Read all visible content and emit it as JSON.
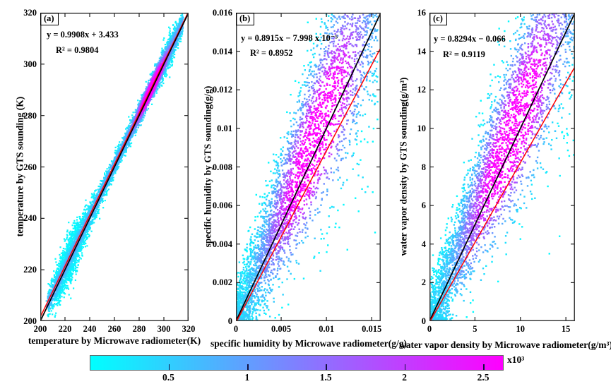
{
  "chart_data": [
    {
      "type": "scatter",
      "panel_label": "(a)",
      "xlabel": "temperature by Microwave radiometer(K)",
      "ylabel": "temperature by GTS sounding (K)",
      "xlim": [
        200,
        320
      ],
      "ylim": [
        200,
        320
      ],
      "xticks": [
        200,
        220,
        240,
        260,
        280,
        300,
        320
      ],
      "xtick_labels": [
        "200",
        "220",
        "240",
        "260",
        "280",
        "300",
        "320"
      ],
      "yticks": [
        200,
        220,
        240,
        260,
        280,
        300,
        320
      ],
      "ytick_labels": [
        "200",
        "220",
        "240",
        "260",
        "280",
        "300",
        "320"
      ],
      "fit": {
        "slope": 0.9908,
        "intercept": 3.433,
        "r2": 0.9804,
        "equation_text": "y = 0.9908x + 3.433",
        "r2_text": "R² = 0.9804"
      },
      "identity_line_color": "#000000",
      "fit_line_color": "#ff0000",
      "colormap": [
        "#00ffff",
        "#ff00ff"
      ],
      "scatter_model": {
        "kind": "band",
        "seed": 11,
        "n": 7000,
        "point_size": 2.2,
        "mix": [
          [
            "u",
            0.55,
            206,
            315.5
          ],
          [
            "g",
            0.28,
            290,
            8
          ],
          [
            "g",
            0.17,
            224,
            7
          ]
        ],
        "sd_terms": [
          [
            1.9
          ],
          [
            2.4,
            224,
            14
          ],
          [
            1.2,
            306,
            7
          ]
        ],
        "y_offset": 0.6,
        "hot": [
          1.05,
          290,
          8,
          2.6
        ],
        "base": [
          0.34,
          2.2
        ],
        "jitter": 0.15
      }
    },
    {
      "type": "scatter",
      "panel_label": "(b)",
      "xlabel": "specific humidity by Microwave radiometer(g/g)",
      "ylabel": "specific humidity by GTS sounding(g/g)",
      "xlim": [
        0,
        0.016
      ],
      "ylim": [
        0,
        0.016
      ],
      "xticks": [
        0,
        0.005,
        0.01,
        0.015
      ],
      "xtick_labels": [
        "0",
        "0.005",
        "0.01",
        "0.015"
      ],
      "yticks": [
        0,
        0.002,
        0.004,
        0.006,
        0.008,
        0.01,
        0.012,
        0.014,
        0.016
      ],
      "ytick_labels": [
        "0",
        "0.002",
        "0.004",
        "0.006",
        "0.008",
        "0.01",
        "0.012",
        "0.014",
        "0.016"
      ],
      "fit": {
        "slope": 0.8915,
        "intercept": -7.998e-05,
        "r2": 0.8952,
        "equation_text": "y = 0.8915x − 7.998 x 10⁻⁵",
        "r2_text": "R² = 0.8952"
      },
      "identity_line_color": "#000000",
      "fit_line_color": "#ff0000",
      "colormap": [
        "#00ffff",
        "#ff00ff"
      ],
      "scatter_model": {
        "kind": "fan",
        "seed": 23,
        "n": 4200,
        "point_size": 2.4,
        "xmax": 0.0157,
        "xpow": 1.25,
        "slope": 1.13,
        "sd0": 0.0009,
        "sdk": 0.17,
        "hot": [
          1.25,
          0.0088,
          0.0038,
          0.0014,
          0.11
        ],
        "cslope": 1.06,
        "jitter": 0.22
      }
    },
    {
      "type": "scatter",
      "panel_label": "(c)",
      "xlabel": "water vapor density by Microwave radiometer(g/m³)",
      "ylabel": "water vapor density by GTS sounding(g/m³)",
      "xlim": [
        0,
        16
      ],
      "ylim": [
        0,
        16
      ],
      "xticks": [
        0,
        5,
        10,
        15
      ],
      "xtick_labels": [
        "0",
        "5",
        "10",
        "15"
      ],
      "yticks": [
        0,
        2,
        4,
        6,
        8,
        10,
        12,
        14,
        16
      ],
      "ytick_labels": [
        "0",
        "2",
        "4",
        "6",
        "8",
        "10",
        "12",
        "14",
        "16"
      ],
      "fit": {
        "slope": 0.8294,
        "intercept": -0.066,
        "r2": 0.9119,
        "equation_text": "y = 0.8294x − 0.066",
        "r2_text": "R² = 0.9119"
      },
      "identity_line_color": "#000000",
      "fit_line_color": "#ff0000",
      "colormap": [
        "#00ffff",
        "#ff00ff"
      ],
      "scatter_model": {
        "kind": "fan",
        "seed": 37,
        "n": 4200,
        "point_size": 2.4,
        "xmax": 16.2,
        "xpow": 1.2,
        "slope": 1.14,
        "sd0": 0.85,
        "sdk": 0.17,
        "hot": [
          1.25,
          9.2,
          3.9,
          1.3,
          0.11
        ],
        "cslope": 1.06,
        "jitter": 0.22
      }
    },
    {
      "type": "colorbar",
      "orientation": "horizontal",
      "range": [
        0,
        2.63
      ],
      "ticks": [
        0.5,
        1,
        1.5,
        2,
        2.5
      ],
      "tick_labels": [
        "0.5",
        "1",
        "1.5",
        "2",
        "2.5"
      ],
      "scale_label": "x10³",
      "colormap": [
        "#00ffff",
        "#ff00ff"
      ]
    }
  ]
}
